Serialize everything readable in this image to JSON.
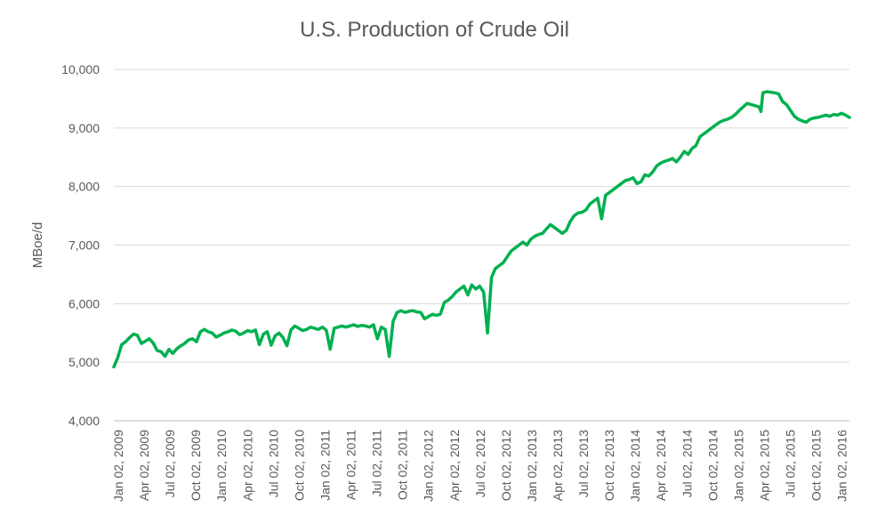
{
  "chart_data": {
    "type": "line",
    "title": "U.S. Production of Crude Oil",
    "xlabel": "",
    "ylabel": "MBoe/d",
    "ylim": [
      4000,
      10000
    ],
    "yticks": [
      4000,
      5000,
      6000,
      7000,
      8000,
      9000,
      10000
    ],
    "ytick_labels": [
      "4,000",
      "5,000",
      "6,000",
      "7,000",
      "8,000",
      "9,000",
      "10,000"
    ],
    "xlim": [
      "2009-01-02",
      "2016-03-04"
    ],
    "xtick_labels": [
      "Jan 02, 2009",
      "Apr 02, 2009",
      "Jul 02, 2009",
      "Oct 02, 2009",
      "Jan 02, 2010",
      "Apr 02, 2010",
      "Jul 02, 2010",
      "Oct 02, 2010",
      "Jan 02, 2011",
      "Apr 02, 2011",
      "Jul 02, 2011",
      "Oct 02, 2011",
      "Jan 02, 2012",
      "Apr 02, 2012",
      "Jul 02, 2012",
      "Oct 02, 2012",
      "Jan 02, 2013",
      "Apr 02, 2013",
      "Jul 02, 2013",
      "Oct 02, 2013",
      "Jan 02, 2014",
      "Apr 02, 2014",
      "Jul 02, 2014",
      "Oct 02, 2014",
      "Jan 02, 2015",
      "Apr 02, 2015",
      "Jul 02, 2015",
      "Oct 02, 2015",
      "Jan 02, 2016"
    ],
    "grid": "horizontal",
    "legend": "none",
    "series": [
      {
        "color": "#00b050",
        "points": [
          [
            "2009-01-02",
            4920
          ],
          [
            "2009-01-16",
            5080
          ],
          [
            "2009-01-30",
            5300
          ],
          [
            "2009-02-13",
            5350
          ],
          [
            "2009-02-27",
            5420
          ],
          [
            "2009-03-13",
            5480
          ],
          [
            "2009-03-27",
            5460
          ],
          [
            "2009-04-10",
            5320
          ],
          [
            "2009-04-24",
            5360
          ],
          [
            "2009-05-08",
            5400
          ],
          [
            "2009-05-22",
            5330
          ],
          [
            "2009-06-05",
            5200
          ],
          [
            "2009-06-19",
            5180
          ],
          [
            "2009-07-03",
            5100
          ],
          [
            "2009-07-17",
            5220
          ],
          [
            "2009-07-31",
            5150
          ],
          [
            "2009-08-14",
            5230
          ],
          [
            "2009-08-28",
            5280
          ],
          [
            "2009-09-11",
            5320
          ],
          [
            "2009-09-25",
            5380
          ],
          [
            "2009-10-09",
            5400
          ],
          [
            "2009-10-23",
            5350
          ],
          [
            "2009-11-06",
            5520
          ],
          [
            "2009-11-20",
            5560
          ],
          [
            "2009-12-04",
            5520
          ],
          [
            "2009-12-18",
            5500
          ],
          [
            "2010-01-01",
            5430
          ],
          [
            "2010-01-15",
            5460
          ],
          [
            "2010-01-29",
            5500
          ],
          [
            "2010-02-12",
            5520
          ],
          [
            "2010-02-26",
            5550
          ],
          [
            "2010-03-12",
            5530
          ],
          [
            "2010-03-26",
            5470
          ],
          [
            "2010-04-09",
            5500
          ],
          [
            "2010-04-23",
            5540
          ],
          [
            "2010-05-07",
            5520
          ],
          [
            "2010-05-21",
            5550
          ],
          [
            "2010-06-04",
            5300
          ],
          [
            "2010-06-18",
            5480
          ],
          [
            "2010-07-02",
            5520
          ],
          [
            "2010-07-16",
            5290
          ],
          [
            "2010-07-30",
            5450
          ],
          [
            "2010-08-13",
            5500
          ],
          [
            "2010-08-27",
            5420
          ],
          [
            "2010-09-10",
            5280
          ],
          [
            "2010-09-24",
            5550
          ],
          [
            "2010-10-08",
            5620
          ],
          [
            "2010-10-22",
            5580
          ],
          [
            "2010-11-05",
            5540
          ],
          [
            "2010-11-19",
            5560
          ],
          [
            "2010-12-03",
            5600
          ],
          [
            "2010-12-17",
            5580
          ],
          [
            "2010-12-31",
            5560
          ],
          [
            "2011-01-14",
            5600
          ],
          [
            "2011-01-28",
            5550
          ],
          [
            "2011-02-11",
            5220
          ],
          [
            "2011-02-25",
            5580
          ],
          [
            "2011-03-11",
            5600
          ],
          [
            "2011-03-25",
            5620
          ],
          [
            "2011-04-08",
            5600
          ],
          [
            "2011-04-22",
            5620
          ],
          [
            "2011-05-06",
            5640
          ],
          [
            "2011-05-20",
            5610
          ],
          [
            "2011-06-03",
            5630
          ],
          [
            "2011-06-17",
            5620
          ],
          [
            "2011-07-01",
            5600
          ],
          [
            "2011-07-15",
            5640
          ],
          [
            "2011-07-29",
            5400
          ],
          [
            "2011-08-12",
            5600
          ],
          [
            "2011-08-26",
            5560
          ],
          [
            "2011-09-09",
            5100
          ],
          [
            "2011-09-23",
            5700
          ],
          [
            "2011-10-07",
            5850
          ],
          [
            "2011-10-21",
            5880
          ],
          [
            "2011-11-04",
            5850
          ],
          [
            "2011-11-18",
            5870
          ],
          [
            "2011-12-02",
            5880
          ],
          [
            "2011-12-16",
            5860
          ],
          [
            "2011-12-30",
            5850
          ],
          [
            "2012-01-13",
            5740
          ],
          [
            "2012-01-27",
            5780
          ],
          [
            "2012-02-10",
            5820
          ],
          [
            "2012-02-24",
            5800
          ],
          [
            "2012-03-09",
            5820
          ],
          [
            "2012-03-23",
            6020
          ],
          [
            "2012-04-06",
            6060
          ],
          [
            "2012-04-20",
            6120
          ],
          [
            "2012-05-04",
            6200
          ],
          [
            "2012-05-18",
            6250
          ],
          [
            "2012-06-01",
            6300
          ],
          [
            "2012-06-15",
            6150
          ],
          [
            "2012-06-29",
            6320
          ],
          [
            "2012-07-13",
            6250
          ],
          [
            "2012-07-27",
            6300
          ],
          [
            "2012-08-10",
            6200
          ],
          [
            "2012-08-24",
            5500
          ],
          [
            "2012-09-07",
            6450
          ],
          [
            "2012-09-21",
            6600
          ],
          [
            "2012-10-05",
            6650
          ],
          [
            "2012-10-19",
            6700
          ],
          [
            "2012-11-02",
            6800
          ],
          [
            "2012-11-16",
            6900
          ],
          [
            "2012-11-30",
            6950
          ],
          [
            "2012-12-14",
            7000
          ],
          [
            "2012-12-28",
            7050
          ],
          [
            "2013-01-11",
            7000
          ],
          [
            "2013-01-25",
            7100
          ],
          [
            "2013-02-08",
            7150
          ],
          [
            "2013-02-22",
            7180
          ],
          [
            "2013-03-08",
            7200
          ],
          [
            "2013-03-22",
            7280
          ],
          [
            "2013-04-05",
            7350
          ],
          [
            "2013-04-19",
            7300
          ],
          [
            "2013-05-03",
            7250
          ],
          [
            "2013-05-17",
            7200
          ],
          [
            "2013-05-31",
            7250
          ],
          [
            "2013-06-14",
            7400
          ],
          [
            "2013-06-28",
            7500
          ],
          [
            "2013-07-12",
            7550
          ],
          [
            "2013-07-26",
            7560
          ],
          [
            "2013-08-09",
            7600
          ],
          [
            "2013-08-23",
            7700
          ],
          [
            "2013-09-06",
            7750
          ],
          [
            "2013-09-20",
            7800
          ],
          [
            "2013-10-04",
            7450
          ],
          [
            "2013-10-18",
            7850
          ],
          [
            "2013-11-01",
            7900
          ],
          [
            "2013-11-15",
            7950
          ],
          [
            "2013-11-29",
            8000
          ],
          [
            "2013-12-13",
            8050
          ],
          [
            "2013-12-27",
            8100
          ],
          [
            "2014-01-10",
            8120
          ],
          [
            "2014-01-24",
            8150
          ],
          [
            "2014-02-07",
            8050
          ],
          [
            "2014-02-21",
            8080
          ],
          [
            "2014-03-07",
            8200
          ],
          [
            "2014-03-21",
            8180
          ],
          [
            "2014-04-04",
            8250
          ],
          [
            "2014-04-18",
            8350
          ],
          [
            "2014-05-02",
            8400
          ],
          [
            "2014-05-16",
            8430
          ],
          [
            "2014-05-30",
            8450
          ],
          [
            "2014-06-13",
            8480
          ],
          [
            "2014-06-27",
            8420
          ],
          [
            "2014-07-11",
            8500
          ],
          [
            "2014-07-25",
            8600
          ],
          [
            "2014-08-08",
            8550
          ],
          [
            "2014-08-22",
            8650
          ],
          [
            "2014-09-05",
            8700
          ],
          [
            "2014-09-19",
            8850
          ],
          [
            "2014-10-03",
            8900
          ],
          [
            "2014-10-17",
            8950
          ],
          [
            "2014-10-31",
            9000
          ],
          [
            "2014-11-14",
            9050
          ],
          [
            "2014-11-28",
            9100
          ],
          [
            "2014-12-12",
            9130
          ],
          [
            "2014-12-26",
            9150
          ],
          [
            "2015-01-09",
            9180
          ],
          [
            "2015-01-23",
            9230
          ],
          [
            "2015-02-06",
            9300
          ],
          [
            "2015-02-20",
            9360
          ],
          [
            "2015-03-06",
            9420
          ],
          [
            "2015-03-20",
            9400
          ],
          [
            "2015-04-03",
            9380
          ],
          [
            "2015-04-17",
            9360
          ],
          [
            "2015-04-24",
            9280
          ],
          [
            "2015-05-01",
            9600
          ],
          [
            "2015-05-15",
            9620
          ],
          [
            "2015-05-29",
            9610
          ],
          [
            "2015-06-12",
            9600
          ],
          [
            "2015-06-26",
            9580
          ],
          [
            "2015-07-10",
            9450
          ],
          [
            "2015-07-24",
            9400
          ],
          [
            "2015-08-07",
            9300
          ],
          [
            "2015-08-21",
            9200
          ],
          [
            "2015-09-04",
            9150
          ],
          [
            "2015-09-18",
            9120
          ],
          [
            "2015-10-02",
            9100
          ],
          [
            "2015-10-16",
            9150
          ],
          [
            "2015-10-30",
            9170
          ],
          [
            "2015-11-13",
            9180
          ],
          [
            "2015-11-27",
            9200
          ],
          [
            "2015-12-11",
            9220
          ],
          [
            "2015-12-25",
            9200
          ],
          [
            "2016-01-08",
            9230
          ],
          [
            "2016-01-22",
            9220
          ],
          [
            "2016-02-05",
            9250
          ],
          [
            "2016-02-19",
            9220
          ],
          [
            "2016-03-04",
            9180
          ]
        ]
      }
    ]
  }
}
